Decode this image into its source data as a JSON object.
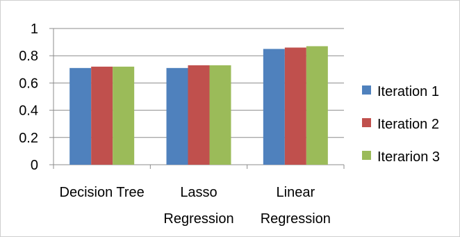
{
  "chart_data": {
    "type": "bar",
    "categories": [
      [
        "Decision Tree"
      ],
      [
        "Lasso",
        "Regression"
      ],
      [
        "Linear",
        "Regression"
      ]
    ],
    "series": [
      {
        "name": "Iteration 1",
        "color": "#4f81bd",
        "values": [
          0.71,
          0.71,
          0.85
        ]
      },
      {
        "name": "Iteration 2",
        "color": "#c0504d",
        "values": [
          0.72,
          0.73,
          0.86
        ]
      },
      {
        "name": "Iterarion 3",
        "color": "#9bbb59",
        "values": [
          0.72,
          0.73,
          0.87
        ]
      }
    ],
    "ylim": [
      0,
      1
    ],
    "yticks": [
      "0",
      "0.2",
      "0.4",
      "0.6",
      "0.8",
      "1"
    ],
    "grid": true,
    "legend_position": "right",
    "title": "",
    "xlabel": "",
    "ylabel": ""
  }
}
